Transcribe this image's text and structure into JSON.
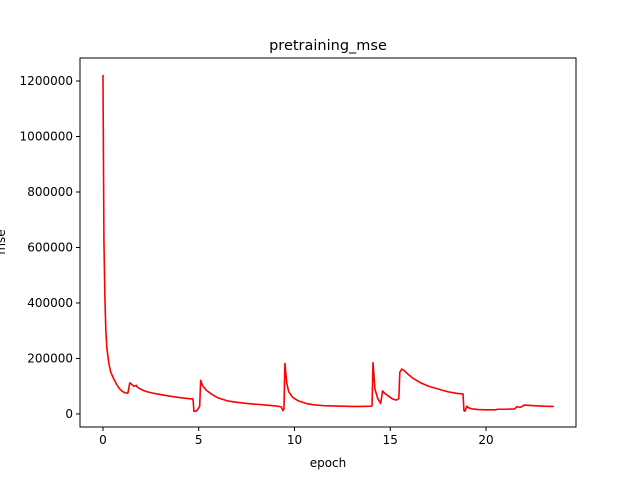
{
  "chart_data": {
    "type": "line",
    "title": "pretraining_mse",
    "xlabel": "epoch",
    "ylabel": "mse",
    "xlim": [
      -1.2,
      24.7
    ],
    "ylim": [
      -47000,
      1283000
    ],
    "xticks": [
      0,
      5,
      10,
      15,
      20
    ],
    "yticks": [
      0,
      200000,
      400000,
      600000,
      800000,
      1000000,
      1200000
    ],
    "grid": false,
    "legend": "none",
    "series": [
      {
        "color": "#ff0000",
        "x": [
          0.0,
          0.05,
          0.1,
          0.15,
          0.2,
          0.3,
          0.4,
          0.55,
          0.7,
          0.85,
          1.0,
          1.15,
          1.3,
          1.4,
          1.45,
          1.6,
          1.75,
          1.8,
          1.9,
          2.1,
          2.3,
          2.6,
          3.0,
          3.5,
          4.0,
          4.5,
          4.7,
          4.75,
          4.8,
          4.9,
          5.0,
          5.05,
          5.1,
          5.2,
          5.4,
          5.7,
          6.0,
          6.5,
          7.0,
          7.5,
          8.0,
          8.5,
          9.0,
          9.3,
          9.4,
          9.45,
          9.5,
          9.6,
          9.7,
          9.9,
          10.2,
          10.6,
          11.0,
          11.5,
          12.0,
          12.5,
          13.0,
          13.5,
          14.0,
          14.05,
          14.1,
          14.2,
          14.35,
          14.5,
          14.6,
          14.7,
          14.9,
          15.1,
          15.3,
          15.45,
          15.5,
          15.6,
          15.7,
          15.9,
          16.2,
          16.6,
          17.0,
          17.5,
          18.0,
          18.5,
          18.8,
          18.85,
          18.9,
          19.0,
          19.1,
          19.3,
          19.6,
          20.0,
          20.5,
          20.6,
          21.0,
          21.5,
          21.6,
          21.8,
          22.0,
          22.5,
          23.0,
          23.5
        ],
        "y": [
          1220000,
          620000,
          420000,
          300000,
          240000,
          185000,
          152000,
          128000,
          108000,
          92000,
          82000,
          76000,
          75000,
          112000,
          110000,
          100000,
          103000,
          96000,
          92000,
          85000,
          80000,
          75000,
          70000,
          64000,
          59000,
          55000,
          54000,
          10000,
          9000,
          12000,
          22000,
          28000,
          121000,
          102000,
          85000,
          70000,
          58000,
          47000,
          42000,
          38000,
          35000,
          32000,
          29000,
          26000,
          12000,
          18000,
          182000,
          110000,
          80000,
          60000,
          47000,
          38000,
          33000,
          30000,
          29000,
          28000,
          27000,
          27000,
          28000,
          30000,
          185000,
          90000,
          55000,
          38000,
          83000,
          75000,
          65000,
          55000,
          50000,
          55000,
          150000,
          162000,
          158000,
          145000,
          128000,
          112000,
          100000,
          90000,
          80000,
          74000,
          72000,
          12000,
          10000,
          28000,
          22000,
          18000,
          16000,
          15000,
          15000,
          17000,
          17000,
          18000,
          26000,
          24000,
          32000,
          30000,
          28000,
          27000
        ]
      }
    ]
  }
}
